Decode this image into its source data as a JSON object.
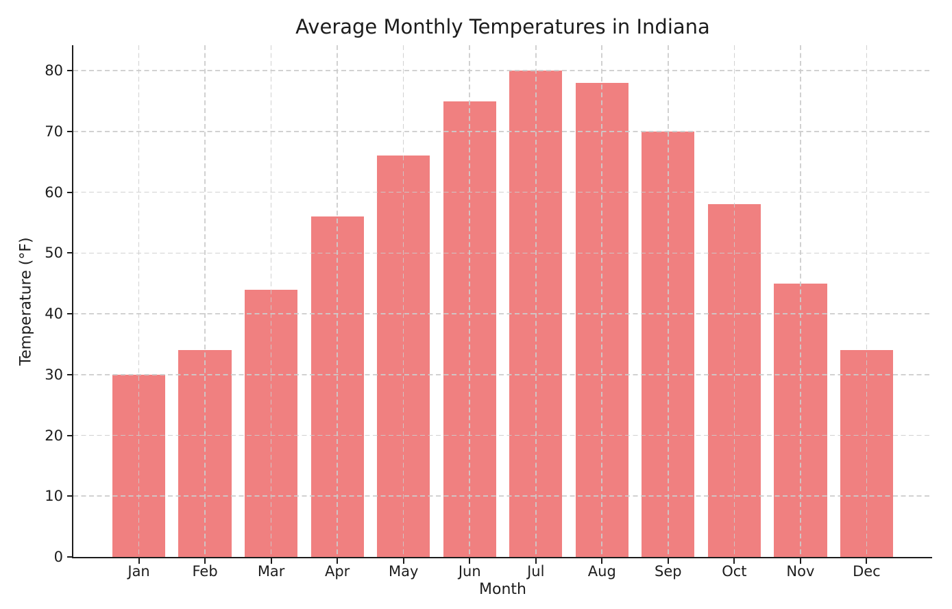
{
  "chart_data": {
    "type": "bar",
    "title": "Average Monthly Temperatures in Indiana",
    "xlabel": "Month",
    "ylabel": "Temperature (°F)",
    "categories": [
      "Jan",
      "Feb",
      "Mar",
      "Apr",
      "May",
      "Jun",
      "Jul",
      "Aug",
      "Sep",
      "Oct",
      "Nov",
      "Dec"
    ],
    "values": [
      30,
      34,
      44,
      56,
      66,
      75,
      80,
      78,
      70,
      58,
      45,
      34
    ],
    "ylim": [
      0,
      84.2
    ],
    "yticks": [
      0,
      10,
      20,
      30,
      40,
      50,
      60,
      70,
      80
    ],
    "grid": true,
    "grid_style": "dashed",
    "grid_above_bars": true,
    "legend_position": "none",
    "bar_width_fraction": 0.8,
    "colors": {
      "bar": "#F08080",
      "grid": "#CCCCCC",
      "axis": "#1C1C1C",
      "text": "#1C1C1C",
      "background": "#FFFFFF"
    }
  }
}
